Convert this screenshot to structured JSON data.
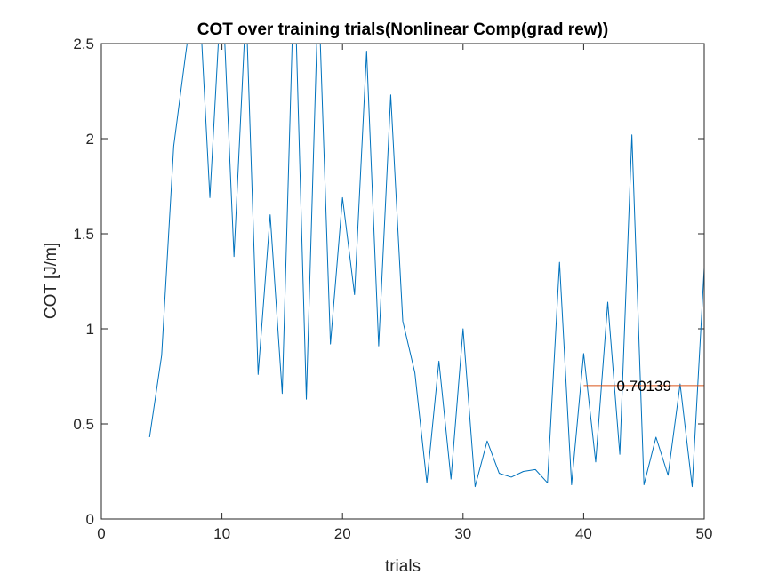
{
  "chart_data": {
    "type": "line",
    "title": "COT over training trials(Nonlinear Comp(grad rew))",
    "xlabel": "trials",
    "ylabel": "COT [J/m]",
    "xlim": [
      0,
      50
    ],
    "ylim": [
      0,
      2.5
    ],
    "xticks": [
      0,
      10,
      20,
      30,
      40,
      50
    ],
    "yticks": [
      0,
      0.5,
      1,
      1.5,
      2,
      2.5
    ],
    "xtick_labels": [
      "0",
      "10",
      "20",
      "30",
      "40",
      "50"
    ],
    "ytick_labels": [
      "0",
      "0.5",
      "1",
      "1.5",
      "2",
      "2.5"
    ],
    "grid": false,
    "series": [
      {
        "color": "#0072bd",
        "x": [
          4,
          5,
          6,
          7,
          8,
          9,
          10,
          11,
          12,
          13,
          14,
          15,
          16,
          17,
          18,
          19,
          20,
          21,
          22,
          23,
          24,
          25,
          26,
          27,
          28,
          29,
          30,
          31,
          32,
          33,
          34,
          35,
          36,
          37,
          38,
          39,
          40,
          41,
          42,
          43,
          44,
          45,
          46,
          47,
          48,
          49,
          50
        ],
        "y": [
          0.43,
          0.86,
          1.96,
          2.45,
          2.9,
          1.69,
          2.85,
          1.38,
          2.7,
          0.76,
          1.6,
          0.66,
          2.9,
          0.63,
          2.8,
          0.92,
          1.69,
          1.18,
          2.46,
          0.91,
          2.23,
          1.04,
          0.77,
          0.19,
          0.83,
          0.21,
          1.0,
          0.17,
          0.41,
          0.24,
          0.22,
          0.25,
          0.26,
          0.19,
          1.35,
          0.18,
          0.87,
          0.3,
          1.14,
          0.34,
          2.02,
          0.18,
          0.43,
          0.23,
          0.71,
          0.17,
          1.32
        ]
      }
    ],
    "reference_line": {
      "label": "0.70139",
      "y": 0.70139,
      "x_range": [
        40,
        50
      ],
      "color": "#d95319"
    }
  }
}
